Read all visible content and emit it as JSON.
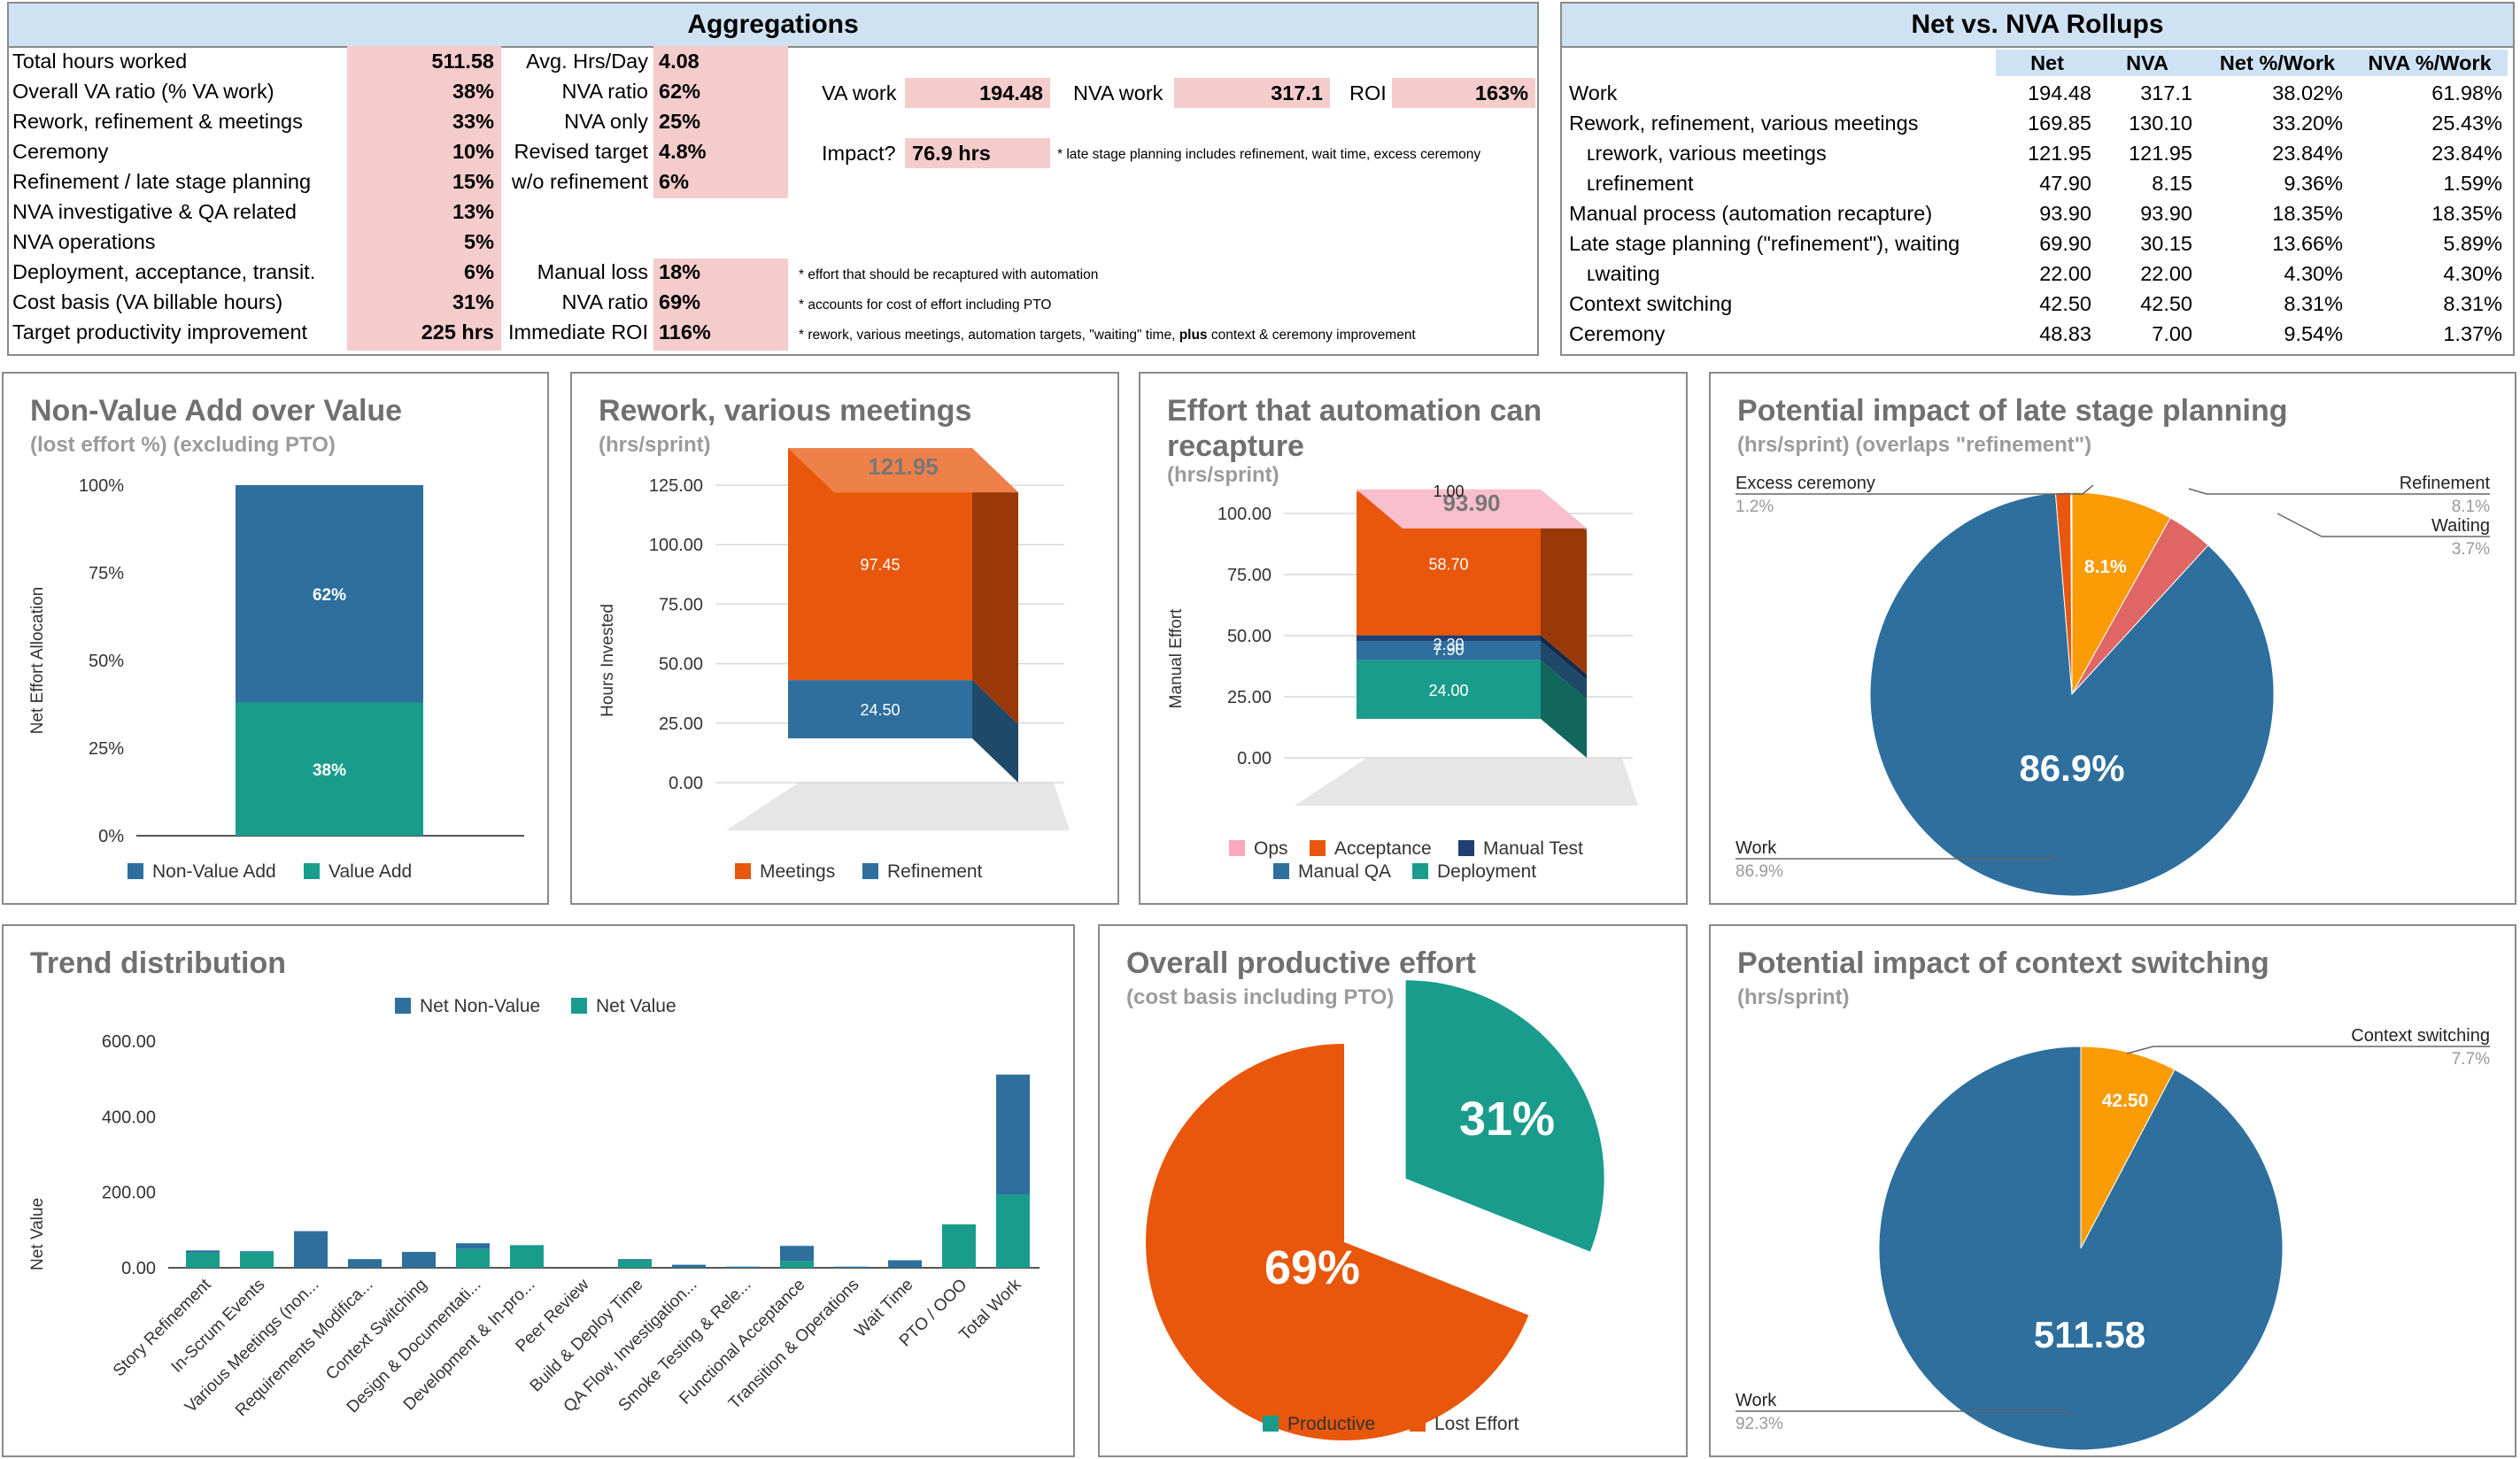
{
  "aggregations": {
    "title": "Aggregations",
    "col1": [
      {
        "label": "Total hours worked",
        "value": "511.58"
      },
      {
        "label": "Overall VA ratio (% VA work)",
        "value": "38%"
      },
      {
        "label": "Rework, refinement & meetings",
        "value": "33%"
      },
      {
        "label": "Ceremony",
        "value": "10%"
      },
      {
        "label": "Refinement / late stage planning",
        "value": "15%"
      },
      {
        "label": "NVA investigative & QA related",
        "value": "13%"
      },
      {
        "label": "NVA operations",
        "value": "5%"
      },
      {
        "label": "Deployment, acceptance, transit.",
        "value": "6%"
      },
      {
        "label": "Cost basis (VA billable hours)",
        "value": "31%"
      },
      {
        "label": "Target productivity improvement",
        "value": "225 hrs"
      }
    ],
    "col2": [
      {
        "label": "Avg. Hrs/Day",
        "value": "4.08"
      },
      {
        "label": "NVA ratio",
        "value": "62%"
      },
      {
        "label": "NVA only",
        "value": "25%"
      },
      {
        "label": "Revised target",
        "value": "4.8%"
      },
      {
        "label": "w/o refinement",
        "value": "6%"
      }
    ],
    "col2_lower": [
      {
        "label": "Manual loss",
        "value": "18%"
      },
      {
        "label": "NVA ratio",
        "value": "69%"
      },
      {
        "label": "Immediate ROI",
        "value": "116%"
      }
    ],
    "va_work_label": "VA work",
    "va_work_value": "194.48",
    "nva_work_label": "NVA work",
    "nva_work_value": "317.1",
    "roi_label": "ROI",
    "roi_value": "163%",
    "impact_label": "Impact?",
    "impact_value": "76.9 hrs",
    "notes": {
      "late_stage": "* late stage planning includes refinement, wait time, excess ceremony",
      "effort": "* effort that should be recaptured with automation",
      "accounts": "* accounts for cost of effort including PTO",
      "rework_pre": "* rework, various meetings, automation targets, \"waiting\" time, ",
      "rework_bold": "plus",
      "rework_post": " context & ceremony improvement"
    }
  },
  "rollups": {
    "title": "Net vs. NVA Rollups",
    "headers": [
      "Net",
      "NVA",
      "Net %/Work",
      "NVA %/Work"
    ],
    "rows": [
      {
        "label": "Work",
        "net": "194.48",
        "nva": "317.1",
        "net_pct": "38.02%",
        "nva_pct": "61.98%"
      },
      {
        "label": "Rework, refinement, various meetings",
        "net": "169.85",
        "nva": "130.10",
        "net_pct": "33.20%",
        "nva_pct": "25.43%"
      },
      {
        "label": "ʟrework, various meetings",
        "net": "121.95",
        "nva": "121.95",
        "net_pct": "23.84%",
        "nva_pct": "23.84%"
      },
      {
        "label": "ʟrefinement",
        "net": "47.90",
        "nva": "8.15",
        "net_pct": "9.36%",
        "nva_pct": "1.59%"
      },
      {
        "label": "Manual process (automation recapture)",
        "net": "93.90",
        "nva": "93.90",
        "net_pct": "18.35%",
        "nva_pct": "18.35%"
      },
      {
        "label": "Late stage planning (\"refinement\"), waiting",
        "net": "69.90",
        "nva": "30.15",
        "net_pct": "13.66%",
        "nva_pct": "5.89%"
      },
      {
        "label": "ʟwaiting",
        "net": "22.00",
        "nva": "22.00",
        "net_pct": "4.30%",
        "nva_pct": "4.30%"
      },
      {
        "label": "Context switching",
        "net": "42.50",
        "nva": "42.50",
        "net_pct": "8.31%",
        "nva_pct": "8.31%"
      },
      {
        "label": "Ceremony",
        "net": "48.83",
        "nva": "7.00",
        "net_pct": "9.54%",
        "nva_pct": "1.37%"
      }
    ]
  },
  "chart_titles": {
    "nva_over_value": {
      "title": "Non-Value Add over Value",
      "subtitle": "(lost effort %) (excluding PTO)"
    },
    "rework": {
      "title": "Rework, various meetings",
      "subtitle": "(hrs/sprint)"
    },
    "automation": {
      "title": "Effort that automation can recapture",
      "subtitle": "(hrs/sprint)"
    },
    "late_stage": {
      "title": "Potential impact of late stage planning",
      "subtitle": "(hrs/sprint) (overlaps \"refinement\")"
    },
    "trend": {
      "title": "Trend distribution"
    },
    "productive": {
      "title": "Overall productive effort",
      "subtitle": "(cost basis including PTO)"
    },
    "context": {
      "title": "Potential impact of context switching",
      "subtitle": "(hrs/sprint)"
    }
  },
  "chart_data": [
    {
      "id": "nva_over_value",
      "type": "bar",
      "stacked": true,
      "ylabel": "Net Effort Allocation",
      "ylim": [
        0,
        100
      ],
      "yticks": [
        "0%",
        "25%",
        "50%",
        "75%",
        "100%"
      ],
      "series": [
        {
          "name": "Value Add",
          "values": [
            38
          ],
          "label": "38%",
          "color": "#1a9c8c"
        },
        {
          "name": "Non-Value Add",
          "values": [
            62
          ],
          "label": "62%",
          "color": "#2e6f9e"
        }
      ],
      "legend": [
        "Non-Value Add",
        "Value Add"
      ]
    },
    {
      "id": "rework",
      "type": "bar",
      "stacked": true,
      "three_d": true,
      "ylabel": "Hours Invested",
      "ylim": [
        0,
        125
      ],
      "yticks": [
        "0.00",
        "25.00",
        "50.00",
        "75.00",
        "100.00",
        "125.00"
      ],
      "total_label": "121.95",
      "series": [
        {
          "name": "Refinement",
          "values": [
            24.5
          ],
          "label": "24.50",
          "color": "#2e6f9e"
        },
        {
          "name": "Meetings",
          "values": [
            97.45
          ],
          "label": "97.45",
          "color": "#e8570c"
        }
      ],
      "legend": [
        "Meetings",
        "Refinement"
      ]
    },
    {
      "id": "automation",
      "type": "bar",
      "stacked": true,
      "three_d": true,
      "ylabel": "Manual Effort",
      "ylim": [
        0,
        100
      ],
      "yticks": [
        "0.00",
        "25.00",
        "50.00",
        "75.00",
        "100.00"
      ],
      "total_label": "93.90",
      "series": [
        {
          "name": "Deployment",
          "values": [
            24.0
          ],
          "label": "24.00",
          "color": "#1a9c8c"
        },
        {
          "name": "Manual QA",
          "values": [
            7.9
          ],
          "label": "7.90",
          "color": "#2e6f9e"
        },
        {
          "name": "Manual Test",
          "values": [
            2.3
          ],
          "label": "2.30",
          "color": "#1f3f73"
        },
        {
          "name": "Acceptance",
          "values": [
            58.7
          ],
          "label": "58.70",
          "color": "#e8570c"
        },
        {
          "name": "Ops",
          "values": [
            1.0
          ],
          "label": "1.00",
          "color": "#f8a9bd"
        }
      ],
      "legend": [
        "Ops",
        "Acceptance",
        "Manual Test",
        "Manual QA",
        "Deployment"
      ]
    },
    {
      "id": "late_stage",
      "type": "pie",
      "slices": [
        {
          "name": "Excess ceremony",
          "value": 1.2,
          "label": "1.2%",
          "color": "#e8570c"
        },
        {
          "name": "Refinement",
          "value": 8.1,
          "label": "8.1%",
          "color": "#fb9b06"
        },
        {
          "name": "Waiting",
          "value": 3.7,
          "label": "3.7%",
          "color": "#e06666"
        },
        {
          "name": "Work",
          "value": 86.9,
          "label": "86.9%",
          "color": "#2e6f9e"
        }
      ],
      "inner_labels": {
        "Refinement": "8.1%",
        "Work": "86.9%"
      }
    },
    {
      "id": "trend",
      "type": "bar",
      "stacked": true,
      "ylabel": "Net Value",
      "ylim": [
        0,
        600
      ],
      "yticks": [
        "0.00",
        "200.00",
        "400.00",
        "600.00"
      ],
      "categories": [
        "Story Refinement",
        "In-Scrum Events",
        "Various Meetings (non...",
        "Requirements Modifica...",
        "Context Switching",
        "Design & Documentati...",
        "Development & In-pro...",
        "Peer Review",
        "Build & Deploy Time",
        "QA Flow, Investigation...",
        "Smoke Testing & Rele...",
        "Functional Acceptance",
        "Transition & Operations",
        "Wait Time",
        "PTO / OOO",
        "Total Work"
      ],
      "series": [
        {
          "name": "Net Value",
          "values": [
            40,
            42,
            0,
            0,
            0,
            50,
            60,
            0,
            20,
            0,
            0,
            18,
            0,
            0,
            115,
            194.48
          ],
          "color": "#1a9c8c"
        },
        {
          "name": "Net Non-Value",
          "values": [
            6,
            2,
            97,
            23,
            42,
            15,
            0,
            0,
            3,
            8,
            3,
            40,
            3,
            20,
            0,
            317.1
          ],
          "color": "#2e6f9e"
        }
      ],
      "legend": [
        "Net Non-Value",
        "Net Value"
      ]
    },
    {
      "id": "productive",
      "type": "pie",
      "exploded": true,
      "slices": [
        {
          "name": "Productive",
          "value": 31,
          "label": "31%",
          "color": "#1a9c8c"
        },
        {
          "name": "Lost Effort",
          "value": 69,
          "label": "69%",
          "color": "#e8570c"
        }
      ],
      "legend": [
        "Productive",
        "Lost Effort"
      ]
    },
    {
      "id": "context",
      "type": "pie",
      "slices": [
        {
          "name": "Context switching",
          "value": 7.7,
          "label": "7.7%",
          "inner": "42.50",
          "color": "#fb9b06"
        },
        {
          "name": "Work",
          "value": 92.3,
          "label": "92.3%",
          "inner": "511.58",
          "color": "#2e6f9e"
        }
      ]
    }
  ]
}
